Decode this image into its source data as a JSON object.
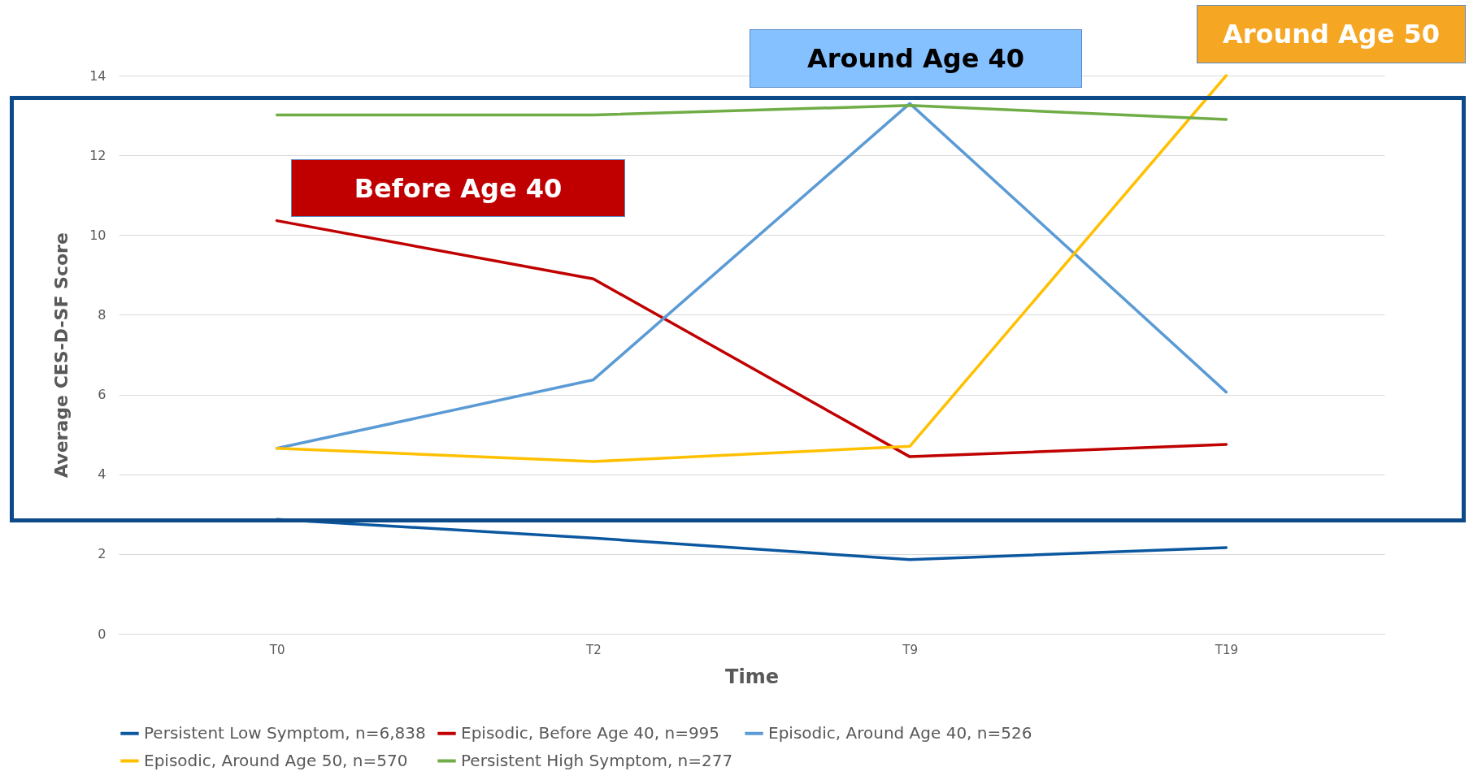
{
  "chart_data": {
    "type": "line",
    "xlabel": "Time",
    "ylabel": "Average CES-D-SF Score",
    "categories": [
      "T0",
      "T2",
      "T9",
      "T19"
    ],
    "series": [
      {
        "name": "Persistent Low Symptom, n=6,838",
        "color": "#0b58a0",
        "values": [
          2.87,
          2.4,
          1.86,
          2.16
        ]
      },
      {
        "name": "Episodic, Before Age 40, n=995",
        "color": "#c00000",
        "values": [
          10.36,
          8.9,
          4.44,
          4.75
        ]
      },
      {
        "name": "Episodic, Around Age 40, n=526",
        "color": "#5b9bd5",
        "values": [
          4.65,
          6.37,
          13.3,
          6.06
        ]
      },
      {
        "name": "Episodic, Around Age 50, n=570",
        "color": "#ffc000",
        "values": [
          4.65,
          4.32,
          4.7,
          14
        ]
      },
      {
        "name": "Persistent High Symptom, n=277",
        "color": "#70ad47",
        "values": [
          13.01,
          13.01,
          13.25,
          12.9
        ]
      }
    ],
    "ylim": [
      0,
      14
    ],
    "yticks": [
      0,
      2,
      4,
      6,
      8,
      10,
      12,
      14
    ],
    "grid": "y",
    "legend": "bottom",
    "line_style": "solid",
    "annotations": [
      "Before Age 40",
      "Around Age 40",
      "Around Age 50"
    ]
  }
}
